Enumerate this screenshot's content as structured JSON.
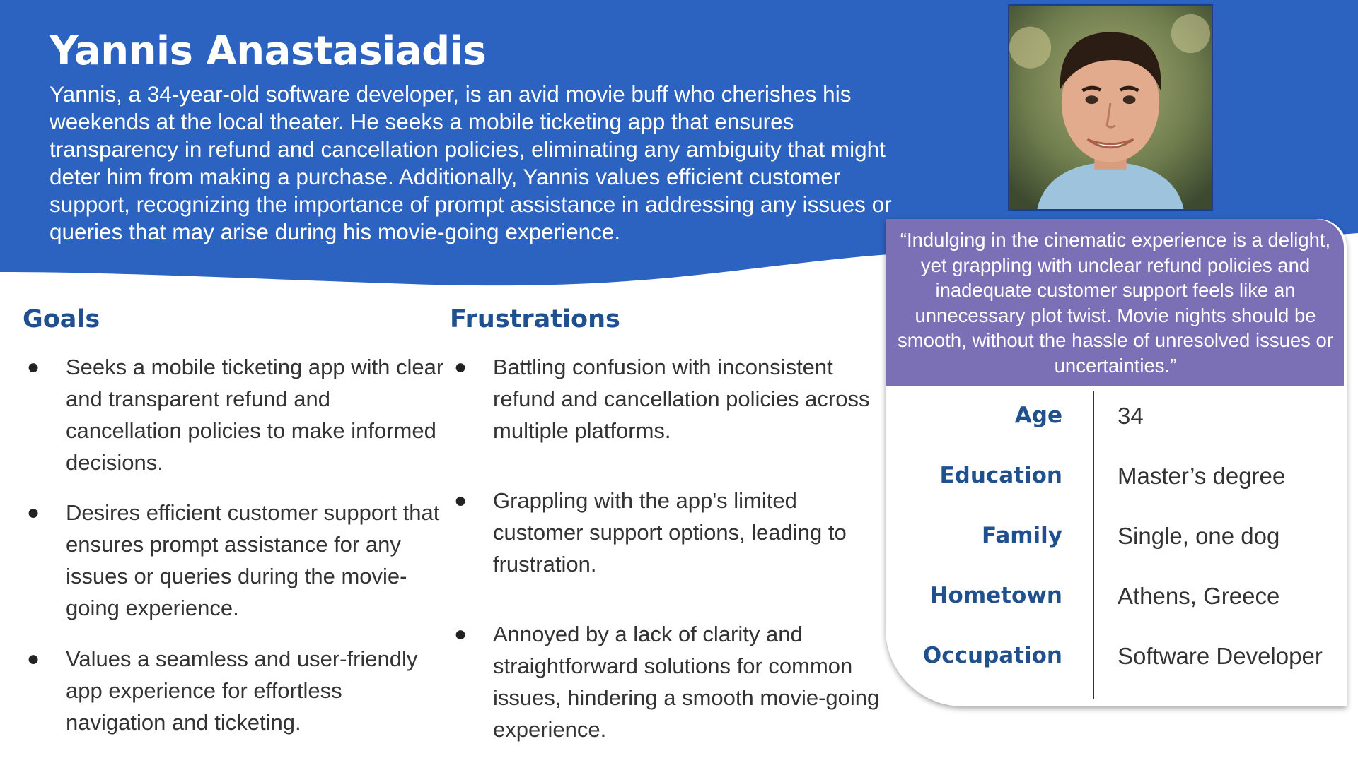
{
  "colors": {
    "header_blue": "#2c63c1",
    "heading_blue": "#21508f",
    "quote_purple": "#7b6fb6",
    "body_text": "#333333"
  },
  "persona": {
    "name": "Yannis Anastasiadis",
    "bio": "Yannis, a 34-year-old software developer, is an avid movie buff who cherishes his weekends at the local theater. He seeks a mobile ticketing app that ensures transparency in refund and cancellation policies, eliminating any ambiguity that might deter him from making a purchase. Additionally, Yannis values efficient customer support, recognizing the importance of prompt assistance in addressing any issues or queries that may arise during his movie-going experience."
  },
  "goals": {
    "heading": "Goals",
    "items": [
      "Seeks a mobile ticketing app with clear and transparent refund and cancellation policies to make informed decisions.",
      "Desires efficient customer support that ensures prompt assistance for any issues or queries during the movie-going experience.",
      "Values a seamless and user-friendly app experience for effortless navigation and ticketing."
    ]
  },
  "frustrations": {
    "heading": "Frustrations",
    "items": [
      "Battling confusion with inconsistent refund and cancellation policies across multiple platforms.",
      "Grappling with the app's limited customer support options, leading to frustration.",
      "Annoyed by a lack of clarity and straightforward solutions for common issues, hindering a smooth movie-going experience."
    ]
  },
  "quote": "“Indulging in the cinematic experience is a delight, yet grappling with unclear refund policies and inadequate customer support feels like an unnecessary plot twist. Movie nights should be smooth, without the hassle of unresolved issues or uncertainties.”",
  "attributes": [
    {
      "label": "Age",
      "value": "34"
    },
    {
      "label": "Education",
      "value": "Master’s degree"
    },
    {
      "label": "Family",
      "value": "Single, one dog"
    },
    {
      "label": "Hometown",
      "value": "Athens, Greece"
    },
    {
      "label": "Occupation",
      "value": "Software Developer"
    }
  ]
}
